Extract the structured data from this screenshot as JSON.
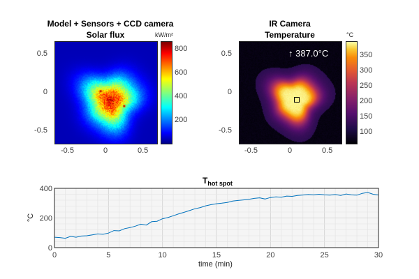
{
  "chart_data": [
    {
      "type": "heatmap",
      "title": "Model + Sensors + CCD camera",
      "subtitle": "Solar flux",
      "xlabel": "",
      "ylabel": "",
      "xlim": [
        -0.65,
        0.65
      ],
      "ylim": [
        -0.65,
        0.65
      ],
      "xticks": [
        "-0.5",
        "0",
        "0.5"
      ],
      "yticks": [
        "0.5",
        "0",
        "-0.5"
      ],
      "colormap": "jet",
      "colorbar": {
        "unit": "kW/m²",
        "range": [
          0,
          860
        ],
        "ticks": [
          "800",
          "600",
          "400",
          "200"
        ]
      },
      "spot": {
        "center": [
          0.05,
          -0.1
        ],
        "radius": 0.33,
        "peak": 760,
        "background": 40
      },
      "hot_pixels": [
        [
          -0.07,
          0.02
        ],
        [
          0.23,
          -0.17
        ],
        [
          0.03,
          -0.1
        ]
      ]
    },
    {
      "type": "heatmap",
      "title": "IR Camera",
      "subtitle": "Temperature",
      "xlabel": "",
      "ylabel": "",
      "xlim": [
        -0.65,
        0.65
      ],
      "ylim": [
        -0.65,
        0.65
      ],
      "xticks": [
        "-0.5",
        "0",
        "0.5"
      ],
      "yticks": [
        "0.5",
        "0",
        "-0.5"
      ],
      "colormap": "inferno",
      "colorbar": {
        "unit": "°C",
        "range": [
          60,
          390
        ],
        "ticks": [
          "350",
          "300",
          "250",
          "200",
          "150",
          "100"
        ]
      },
      "annotation": "↑ 387.0°C",
      "spot": {
        "center": [
          0.05,
          -0.08
        ],
        "radius": 0.3,
        "peak": 385,
        "background": 65
      },
      "marker": [
        0.08,
        -0.08
      ]
    },
    {
      "type": "line",
      "title": "T",
      "title_subscript": "hot spot",
      "xlabel": "time (min)",
      "ylabel": "°C",
      "xlim": [
        0,
        30
      ],
      "ylim": [
        0,
        400
      ],
      "xticks": [
        "0",
        "5",
        "10",
        "15",
        "20",
        "25",
        "30"
      ],
      "yticks": [
        "0",
        "200",
        "400"
      ],
      "grid": true,
      "series": [
        {
          "name": "T hot spot",
          "color": "#0072BD",
          "x": [
            0,
            0.5,
            1,
            1.5,
            2,
            2.5,
            3,
            3.5,
            4,
            4.5,
            5,
            5.5,
            6,
            6.5,
            7,
            7.5,
            8,
            8.5,
            9,
            9.5,
            10,
            10.5,
            11,
            11.5,
            12,
            12.5,
            13,
            13.5,
            14,
            14.5,
            15,
            15.5,
            16,
            16.5,
            17,
            17.5,
            18,
            18.5,
            19,
            19.5,
            20,
            20.5,
            21,
            21.5,
            22,
            22.5,
            23,
            23.5,
            24,
            24.5,
            25,
            25.5,
            26,
            26.5,
            27,
            27.5,
            28,
            28.5,
            29,
            29.5,
            30
          ],
          "y": [
            70,
            68,
            63,
            76,
            70,
            78,
            80,
            86,
            92,
            90,
            98,
            115,
            113,
            128,
            135,
            145,
            158,
            152,
            175,
            178,
            195,
            203,
            215,
            228,
            238,
            250,
            262,
            270,
            282,
            290,
            296,
            300,
            305,
            314,
            318,
            322,
            326,
            332,
            336,
            328,
            338,
            342,
            340,
            348,
            346,
            352,
            355,
            358,
            356,
            360,
            356,
            354,
            358,
            352,
            362,
            356,
            354,
            366,
            372,
            360,
            355
          ]
        }
      ]
    }
  ]
}
